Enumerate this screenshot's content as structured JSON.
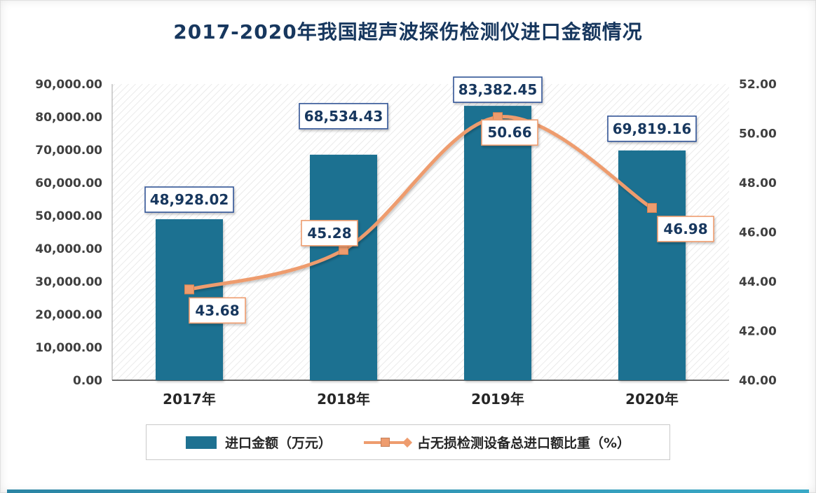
{
  "chart_data": {
    "type": "combo",
    "title": "2017-2020年我国超声波探伤检测仪进口金额情况",
    "categories": [
      "2017年",
      "2018年",
      "2019年",
      "2020年"
    ],
    "series": [
      {
        "name": "进口金额（万元）",
        "type": "bar",
        "axis": "left",
        "values": [
          48928.02,
          68534.43,
          83382.45,
          69819.16
        ],
        "labels": [
          "48,928.02",
          "68,534.43",
          "83,382.45",
          "69,819.16"
        ]
      },
      {
        "name": "占无损检测设备总进口额比重（%）",
        "type": "line",
        "axis": "right",
        "values": [
          43.68,
          45.28,
          50.66,
          46.98
        ],
        "labels": [
          "43.68",
          "45.28",
          "50.66",
          "46.98"
        ]
      }
    ],
    "left_axis": {
      "min": 0,
      "max": 90000,
      "step": 10000,
      "tick_labels": [
        "0.00",
        "10,000.00",
        "20,000.00",
        "30,000.00",
        "40,000.00",
        "50,000.00",
        "60,000.00",
        "70,000.00",
        "80,000.00",
        "90,000.00"
      ]
    },
    "right_axis": {
      "min": 40,
      "max": 52,
      "step": 2,
      "tick_labels": [
        "40.00",
        "42.00",
        "44.00",
        "46.00",
        "48.00",
        "50.00",
        "52.00"
      ]
    },
    "legend": [
      "进口金额（万元）",
      "占无损检测设备总进口额比重（%）"
    ],
    "legend_position": "bottom",
    "grid": false
  },
  "colors": {
    "bar": "#1e7191",
    "line": "#ee9c6e",
    "line_marker_border": "#d9824f",
    "title_text": "#17375e",
    "label_text": "#17375e",
    "bar_label_border": "#305496",
    "line_label_border": "#ee9c6e",
    "axis_text": "#404040",
    "category_text": "#262626",
    "axis_line": "#595959",
    "hatch": "#e4e4e4",
    "bottom_accent": "#2f97b5"
  }
}
